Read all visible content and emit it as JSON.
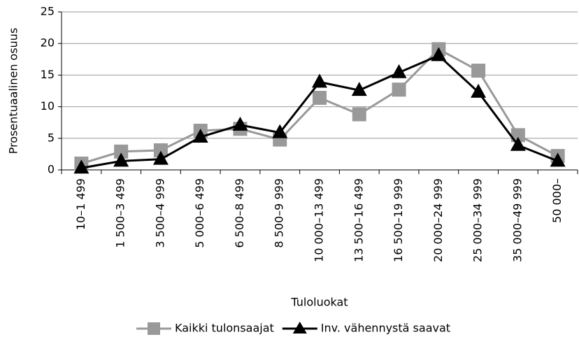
{
  "chart_data": {
    "type": "line",
    "categories": [
      "10–1 499",
      "1 500–3 499",
      "3 500–4 999",
      "5 000–6 499",
      "6 500–8 499",
      "8 500–9 999",
      "10 000–13 499",
      "13 500–16 499",
      "16 500–19 999",
      "20 000–24 999",
      "25 000–34 999",
      "35 000–49 999",
      "50 000–"
    ],
    "series": [
      {
        "name": "Kaikki tulonsaajat",
        "color": "#999999",
        "marker": "square",
        "values": [
          1.0,
          2.9,
          3.1,
          6.2,
          6.5,
          4.8,
          11.4,
          8.8,
          12.7,
          19.1,
          15.7,
          5.5,
          2.2
        ]
      },
      {
        "name": "Inv. vähennystä saavat",
        "color": "#000000",
        "marker": "triangle",
        "values": [
          0.3,
          1.4,
          1.7,
          5.2,
          7.1,
          5.9,
          13.9,
          12.6,
          15.4,
          18.1,
          12.3,
          3.9,
          1.4
        ]
      }
    ],
    "ylim": [
      0,
      25
    ],
    "yticks": [
      0,
      5,
      10,
      15,
      20,
      25
    ],
    "grid": true,
    "ylabel": "Prosentuaalinen osuus",
    "xlabel": "Tuloluokat",
    "legend": "bottom"
  }
}
